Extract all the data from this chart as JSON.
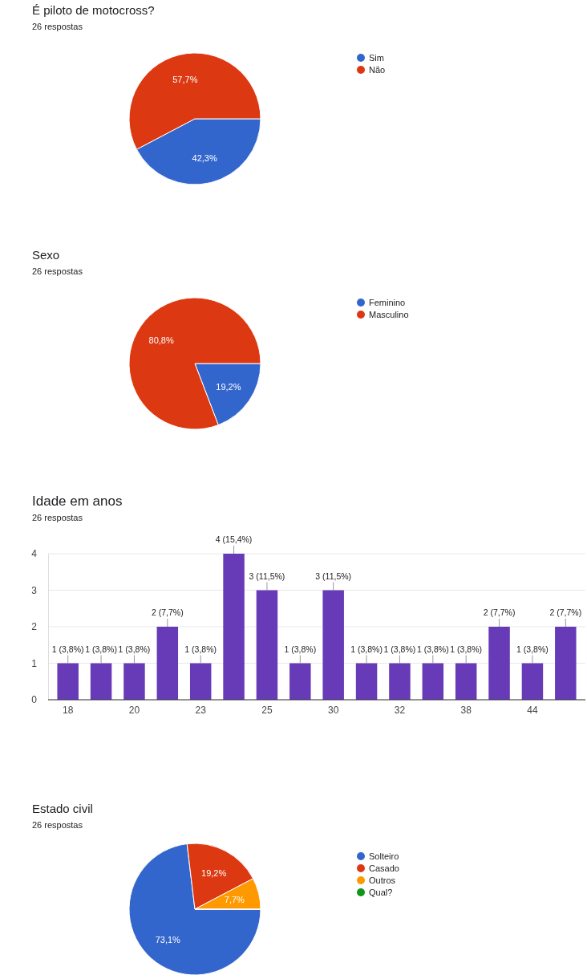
{
  "chart_data": [
    {
      "type": "pie",
      "title": "É piloto de motocross?",
      "subtitle": "26 respostas",
      "categories": [
        "Sim",
        "Não"
      ],
      "values": [
        42.3,
        57.7
      ],
      "colors": [
        "#3366cc",
        "#dc3912"
      ],
      "value_labels": [
        "42,3%",
        "57,7%"
      ],
      "legend": "right"
    },
    {
      "type": "pie",
      "title": "Sexo",
      "subtitle": "26 respostas",
      "categories": [
        "Feminino",
        "Masculino"
      ],
      "values": [
        19.2,
        80.8
      ],
      "colors": [
        "#3366cc",
        "#dc3912"
      ],
      "value_labels": [
        "19,2%",
        "80,8%"
      ],
      "legend": "right"
    },
    {
      "type": "bar",
      "title": "Idade em anos",
      "subtitle": "26 respostas",
      "categories": [
        "18",
        null,
        "20",
        null,
        "23",
        null,
        "25",
        null,
        "30",
        null,
        "32",
        null,
        "38",
        null,
        "44",
        null
      ],
      "values": [
        1,
        1,
        1,
        2,
        1,
        4,
        3,
        1,
        3,
        1,
        1,
        1,
        1,
        2,
        1,
        2
      ],
      "color": "#673ab7",
      "value_labels": [
        "1 (3,8%)",
        "1 (3,8%)",
        "1 (3,8%)",
        "2 (7,7%)",
        "1 (3,8%)",
        "4 (15,4%)",
        "3 (11,5%)",
        "1 (3,8%)",
        "3 (11,5%)",
        "1 (3,8%)",
        "1 (3,8%)",
        "1 (3,8%)",
        "1 (3,8%)",
        "2 (7,7%)",
        "1 (3,8%)",
        "2 (7,7%)"
      ],
      "ylim": [
        0,
        4
      ],
      "yticks": [
        0,
        1,
        2,
        3,
        4
      ],
      "grid": "y"
    },
    {
      "type": "pie",
      "title": "Estado civil",
      "subtitle": "26 respostas",
      "categories": [
        "Solteiro",
        "Casado",
        "Outros",
        "Qual?"
      ],
      "values": [
        73.1,
        19.2,
        7.7,
        0
      ],
      "colors": [
        "#3366cc",
        "#dc3912",
        "#ff9900",
        "#109618"
      ],
      "value_labels": [
        "73,1%",
        "19,2%",
        "7,7%",
        null
      ],
      "legend": "right"
    }
  ]
}
